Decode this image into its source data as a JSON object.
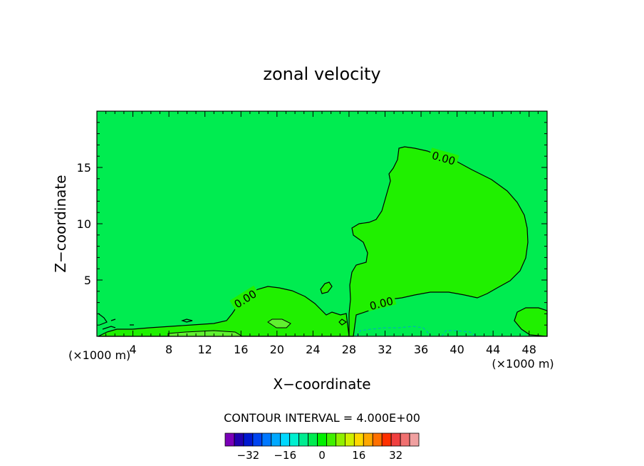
{
  "chart_data": {
    "type": "heatmap",
    "title": "zonal velocity",
    "xlabel": "X−coordinate",
    "ylabel": "Z−coordinate",
    "x_unit": "(×1000 m)",
    "xlim": [
      0,
      50
    ],
    "ylim": [
      0,
      20
    ],
    "x_ticks": [
      4,
      8,
      12,
      16,
      20,
      24,
      28,
      32,
      36,
      40,
      44,
      48
    ],
    "y_ticks": [
      5,
      10,
      15
    ],
    "contour_labels": [
      {
        "text": "0.00",
        "x": 38.5,
        "y": 15.8
      },
      {
        "text": "0.00",
        "x": 16.5,
        "y": 3.3
      },
      {
        "text": "0.00",
        "x": 31.6,
        "y": 2.9
      }
    ],
    "contour_interval_text": "CONTOUR INTERVAL =  4.000E+00",
    "colorbar": {
      "colors": [
        "#7a00b8",
        "#2200b0",
        "#0018d0",
        "#0044f0",
        "#0078ff",
        "#00a8ff",
        "#00d8ff",
        "#00f0d0",
        "#00ec90",
        "#00ec50",
        "#00f000",
        "#40f000",
        "#90f000",
        "#d0f000",
        "#ffd800",
        "#ffa800",
        "#ff7000",
        "#ff3000",
        "#f04040",
        "#f07070",
        "#f0a0a0"
      ],
      "ticks": [
        {
          "label": "−32",
          "value": -32
        },
        {
          "label": "−16",
          "value": -16
        },
        {
          "label": "0",
          "value": 0
        },
        {
          "label": "16",
          "value": 16
        },
        {
          "label": "32",
          "value": 32
        }
      ],
      "min": -42,
      "max": 42
    },
    "regions": [
      {
        "value": 0,
        "desc": "background ~0 m/s",
        "color": "#00ec50"
      },
      {
        "value": 2,
        "desc": "large positive region x 28-48, z 2-17",
        "color": "#20f000"
      },
      {
        "value": 2,
        "desc": "positive region x 15-27, z 0-4.5",
        "color": "#20f000"
      },
      {
        "value": 2,
        "desc": "near-surface positive band x 2-22",
        "color": "#20f000"
      },
      {
        "value": 4,
        "desc": "small patch x 19-21, z 1.3",
        "color": "#60f030"
      },
      {
        "value": 2,
        "desc": "small patch x 25.5, z 4.5",
        "color": "#20f000"
      },
      {
        "value": 2,
        "desc": "small patch x 46-50, z 0.5-2.5",
        "color": "#20f000"
      },
      {
        "value": -2,
        "desc": "weak negative near surface x 29-42 (dashed)",
        "color": "#00ec50"
      }
    ]
  }
}
